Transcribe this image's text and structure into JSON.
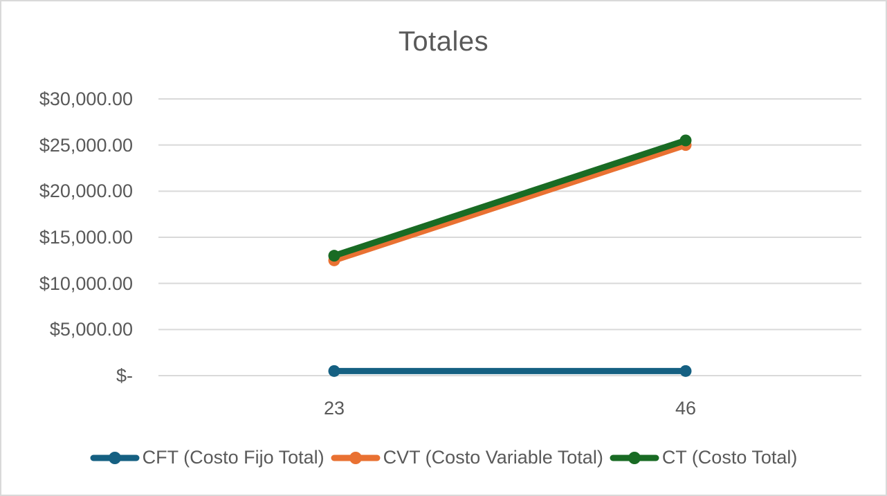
{
  "chart_data": {
    "type": "line",
    "title": "Totales",
    "categories": [
      23,
      46
    ],
    "x_labels": [
      "23",
      "46"
    ],
    "series": [
      {
        "name": "CFT (Costo Fijo Total)",
        "color": "#156082",
        "values": [
          500,
          500
        ]
      },
      {
        "name": "CVT (Costo Variable Total)",
        "color": "#E97132",
        "values": [
          12500,
          25000
        ]
      },
      {
        "name": "CT (Costo Total)",
        "color": "#196B24",
        "values": [
          13000,
          25500
        ]
      }
    ],
    "xlabel": "",
    "ylabel": "",
    "ylim": [
      0,
      30000
    ],
    "ytick_step": 5000,
    "ytick_labels": [
      "$-",
      "$5,000.00",
      "$10,000.00",
      "$15,000.00",
      "$20,000.00",
      "$25,000.00",
      "$30,000.00"
    ],
    "grid": true,
    "legend_position": "bottom",
    "colors": {
      "background": "#FFFFFF",
      "border": "#D9D9D9",
      "gridline": "#D9D9D9",
      "text": "#595959"
    }
  }
}
